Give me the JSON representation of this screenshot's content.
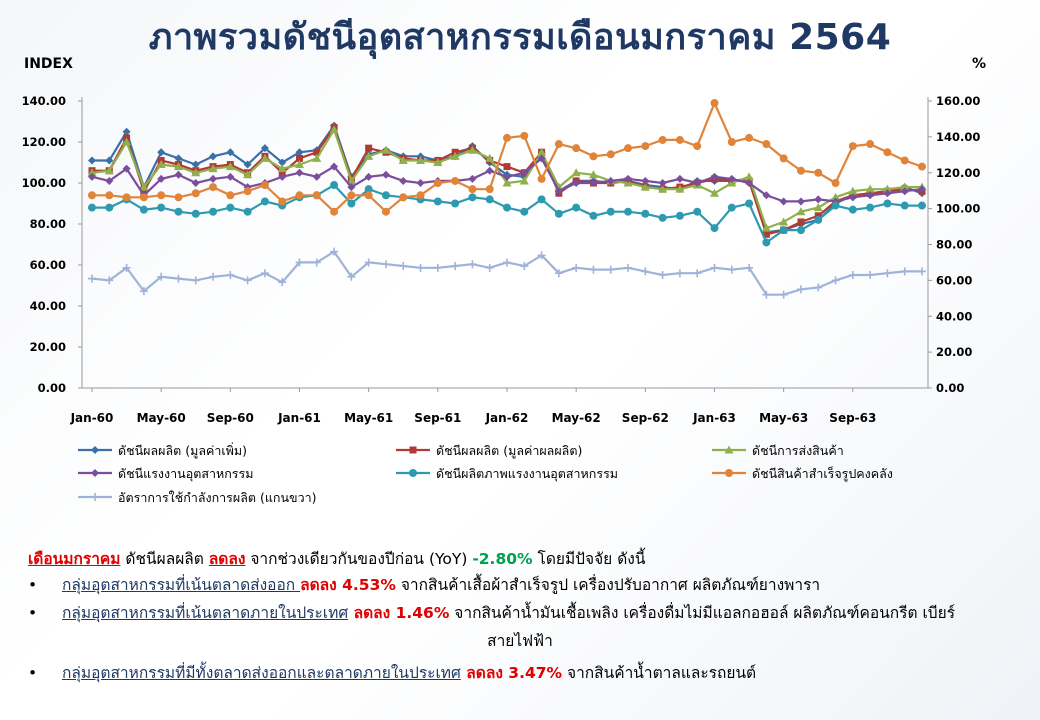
{
  "page": {
    "title": "ภาพรวมดัชนีอุตสาหกรรมเดือนมกราคม  2564",
    "left_unit": "INDEX",
    "right_unit": "%"
  },
  "chart_data": {
    "type": "line",
    "left_axis": {
      "ylim": [
        0,
        140
      ],
      "ticks": [
        "0.00",
        "20.00",
        "40.00",
        "60.00",
        "80.00",
        "100.00",
        "120.00",
        "140.00"
      ]
    },
    "right_axis": {
      "ylim": [
        0,
        160
      ],
      "ticks": [
        "0.00",
        "20.00",
        "40.00",
        "60.00",
        "80.00",
        "100.00",
        "120.00",
        "140.00",
        "160.00"
      ]
    },
    "x_tick_labels": [
      "Jan-60",
      "May-60",
      "Sep-60",
      "Jan-61",
      "May-61",
      "Sep-61",
      "Jan-62",
      "May-62",
      "Sep-62",
      "Jan-63",
      "May-63",
      "Sep-63"
    ],
    "x_tick_index": [
      0,
      4,
      8,
      12,
      16,
      20,
      24,
      28,
      32,
      36,
      40,
      44
    ],
    "n_points": 49,
    "grid": false,
    "legend_position": "bottom",
    "series": [
      {
        "name": "ดัชนีผลผลิต (มูลค่าเพิ่ม)",
        "color": "#3a6fa8",
        "marker": "diamond",
        "axis": "left",
        "values": [
          111,
          111,
          125,
          98,
          115,
          112,
          109,
          113,
          115,
          109,
          117,
          110,
          115,
          116,
          128,
          103,
          114,
          116,
          113,
          113,
          111,
          113,
          118,
          110,
          104,
          103,
          115,
          96,
          101,
          101,
          100,
          101,
          99,
          98,
          97,
          101,
          101,
          101,
          102,
          76,
          77,
          80,
          82,
          90,
          94,
          95,
          96,
          98,
          95
        ]
      },
      {
        "name": "ดัชนีผลผลิต (มูลค่าผลผลิต)",
        "color": "#b23a34",
        "marker": "square",
        "axis": "left",
        "values": [
          106,
          106,
          122,
          96,
          111,
          109,
          106,
          108,
          109,
          105,
          113,
          105,
          112,
          115,
          127,
          102,
          117,
          115,
          112,
          111,
          111,
          115,
          117,
          111,
          108,
          105,
          115,
          95,
          101,
          100,
          100,
          101,
          98,
          97,
          98,
          100,
          102,
          101,
          101,
          75,
          77,
          81,
          84,
          91,
          94,
          95,
          96,
          97,
          96
        ]
      },
      {
        "name": "ดัชนีการส่งสินค้า",
        "color": "#8fb04a",
        "marker": "triangle",
        "axis": "left",
        "values": [
          105,
          106,
          120,
          98,
          109,
          108,
          105,
          107,
          108,
          104,
          112,
          107,
          109,
          112,
          126,
          101,
          113,
          116,
          111,
          111,
          110,
          113,
          116,
          112,
          100,
          101,
          115,
          98,
          105,
          104,
          101,
          100,
          98,
          97,
          97,
          99,
          95,
          100,
          103,
          78,
          81,
          86,
          88,
          93,
          96,
          97,
          97,
          98,
          98
        ]
      },
      {
        "name": "ดัชนีแรงงานอุตสาหกรรม",
        "color": "#7a4e9c",
        "marker": "diamond",
        "axis": "left",
        "values": [
          103,
          101,
          107,
          94,
          102,
          104,
          100,
          102,
          103,
          98,
          100,
          103,
          105,
          103,
          108,
          98,
          103,
          104,
          101,
          100,
          101,
          101,
          102,
          106,
          103,
          105,
          112,
          96,
          100,
          100,
          101,
          102,
          101,
          100,
          102,
          100,
          103,
          102,
          100,
          94,
          91,
          91,
          92,
          91,
          93,
          94,
          95,
          96,
          97
        ]
      },
      {
        "name": "ดัชนีผลิตภาพแรงงานอุตสาหกรรม",
        "color": "#2e9ab0",
        "marker": "circle",
        "axis": "left",
        "values": [
          88,
          88,
          92,
          87,
          88,
          86,
          85,
          86,
          88,
          86,
          91,
          89,
          93,
          94,
          99,
          90,
          97,
          94,
          93,
          92,
          91,
          90,
          93,
          92,
          88,
          86,
          92,
          85,
          88,
          84,
          86,
          86,
          85,
          83,
          84,
          86,
          78,
          88,
          90,
          71,
          77,
          77,
          82,
          89,
          87,
          88,
          90,
          89,
          89
        ]
      },
      {
        "name": "ดัชนีสินค้าสำเร็จรูปคงคลัง",
        "color": "#e0843a",
        "marker": "circle",
        "axis": "left",
        "values": [
          94,
          94,
          93,
          93,
          94,
          93,
          95,
          98,
          94,
          96,
          99,
          91,
          94,
          94,
          86,
          94,
          94,
          86,
          93,
          94,
          100,
          101,
          97,
          97,
          122,
          123,
          102,
          119,
          117,
          113,
          114,
          117,
          118,
          121,
          121,
          118,
          139,
          120,
          122,
          119,
          112,
          106,
          105,
          100,
          118,
          119,
          115,
          111,
          108
        ]
      },
      {
        "name": "อัตราการใช้กำลังการผลิต (แกนขวา)",
        "color": "#9fb3d9",
        "marker": "plus",
        "axis": "right",
        "values": [
          61,
          60,
          67,
          54,
          62,
          61,
          60,
          62,
          63,
          60,
          64,
          59,
          70,
          70,
          76,
          62,
          70,
          69,
          68,
          67,
          67,
          68,
          69,
          67,
          70,
          68,
          74,
          64,
          67,
          66,
          66,
          67,
          65,
          63,
          64,
          64,
          67,
          66,
          67,
          52,
          52,
          55,
          56,
          60,
          63,
          63,
          64,
          65,
          65
        ]
      }
    ]
  },
  "text": {
    "line1_a": "เดือนมกราคม",
    "line1_b": " ดัชนีผลผลิต ",
    "line1_c": "ลดลง",
    "line1_d": " จากช่วงเดียวกันของปีก่อน (YoY) ",
    "line1_e": "-2.80%",
    "line1_f": " โดยมีปัจจัย ดังนี้",
    "bullet_char": "•",
    "b1_a": "กลุ่มอุตสาหกรรมที่เน้นตลาดส่งออก ",
    "b1_b": "ลดลง 4.53%",
    "b1_c": " จากสินค้าเสื้อผ้าสำเร็จรูป เครื่องปรับอากาศ ผลิตภัณฑ์ยางพารา",
    "b2_a": "กลุ่มอุตสาหกรรมที่เน้นตลาดภายในประเทศ",
    "b2_b": " ลดลง 1.46%",
    "b2_c": " จากสินค้าน้ำมันเชื้อเพลิง เครื่องดื่มไม่มีแอลกอฮอล์ ผลิตภัณฑ์คอนกรีต เบียร์",
    "b2_d": "สายไฟฟ้า",
    "b3_a": "กลุ่มอุตสาหกรรมที่มีทั้งตลาดส่งออกและตลาดภายในประเทศ",
    "b3_b": " ลดลง 3.47%",
    "b3_c": " จากสินค้าน้ำตาลและรถยนต์"
  }
}
